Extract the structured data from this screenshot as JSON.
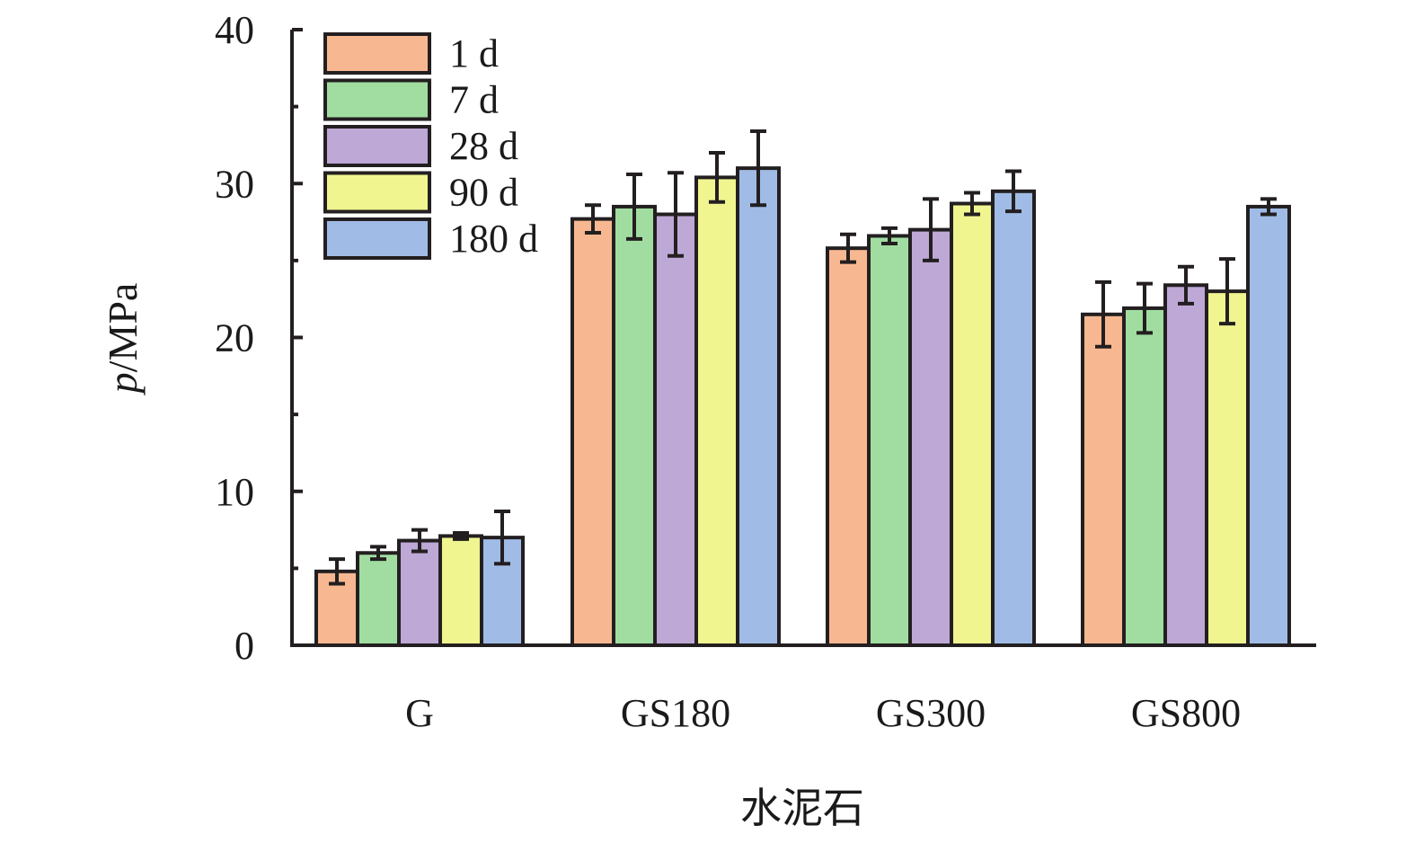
{
  "chart_data": {
    "type": "bar",
    "categories": [
      "G",
      "GS180",
      "GS300",
      "GS800"
    ],
    "series": [
      {
        "name": "1 d",
        "color": "#F7B891",
        "values": [
          4.8,
          27.7,
          25.8,
          21.5
        ],
        "errors": [
          0.8,
          0.9,
          0.9,
          2.1
        ]
      },
      {
        "name": "7 d",
        "color": "#A1DDA1",
        "values": [
          6.0,
          28.5,
          26.6,
          21.9
        ],
        "errors": [
          0.4,
          2.1,
          0.5,
          1.6
        ]
      },
      {
        "name": "28 d",
        "color": "#BEA8D6",
        "values": [
          6.8,
          28.0,
          27.0,
          23.4
        ],
        "errors": [
          0.7,
          2.7,
          2.0,
          1.2
        ]
      },
      {
        "name": "90 d",
        "color": "#F0F590",
        "values": [
          7.1,
          30.4,
          28.7,
          23.0
        ],
        "errors": [
          0.2,
          1.6,
          0.7,
          2.1
        ]
      },
      {
        "name": "180 d",
        "color": "#A0BCE6",
        "values": [
          7.0,
          31.0,
          29.5,
          28.5
        ],
        "errors": [
          1.7,
          2.4,
          1.3,
          0.5
        ]
      }
    ],
    "xlabel": "水泥石",
    "ylabel": "p/MPa",
    "ylabel_italic_part": "p",
    "ylabel_rest": "/MPa",
    "ylim": [
      0,
      40
    ],
    "yticks": [
      0,
      10,
      20,
      30,
      40
    ],
    "legend_position": "top-left",
    "grid": false
  }
}
